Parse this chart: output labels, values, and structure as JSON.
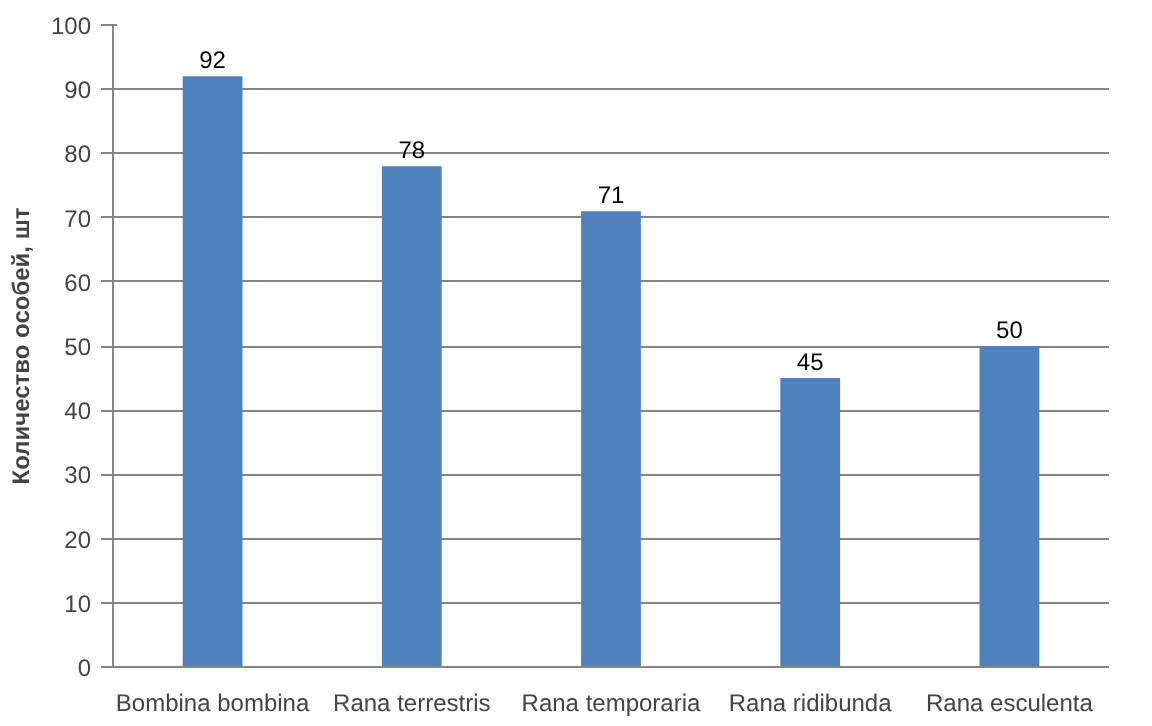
{
  "chart_data": {
    "type": "bar",
    "ylabel": "Количество особей, шт",
    "categories": [
      "Bombina bombina",
      "Rana terrestris",
      "Rana temporaria",
      "Rana ridibunda",
      "Rana esculenta"
    ],
    "values": [
      92,
      78,
      71,
      45,
      50
    ],
    "color": "#4f81bd",
    "ylim": [
      0,
      100
    ],
    "yticks": [
      0,
      10,
      20,
      30,
      40,
      50,
      60,
      70,
      80,
      90,
      100
    ],
    "grid": "y",
    "data_labels": true
  }
}
